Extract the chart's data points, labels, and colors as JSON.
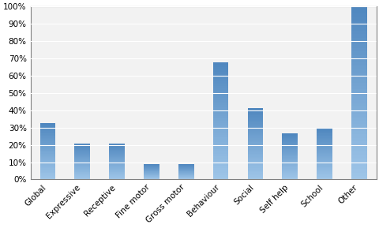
{
  "categories": [
    "Global",
    "Expressive",
    "Receptive",
    "Fine motor",
    "Gross motor",
    "Behaviour",
    "Social",
    "Self help",
    "School",
    "Other"
  ],
  "values": [
    32.4,
    20.6,
    20.6,
    8.8,
    8.8,
    67.6,
    41.2,
    26.5,
    29.4,
    100.0
  ],
  "bar_color": "#7BAFD4",
  "ylim": [
    0,
    100
  ],
  "ytick_labels": [
    "0%",
    "10%",
    "20%",
    "30%",
    "40%",
    "50%",
    "60%",
    "70%",
    "80%",
    "90%",
    "100%"
  ],
  "ytick_values": [
    0,
    10,
    20,
    30,
    40,
    50,
    60,
    70,
    80,
    90,
    100
  ],
  "background_color": "#FFFFFF",
  "plot_bg_color": "#F2F2F2",
  "grid_color": "#FFFFFF",
  "tick_fontsize": 7.5,
  "xlabel_fontsize": 7.5,
  "bar_width": 0.45,
  "spine_color": "#808080",
  "figure_border_color": "#A0A0A0"
}
